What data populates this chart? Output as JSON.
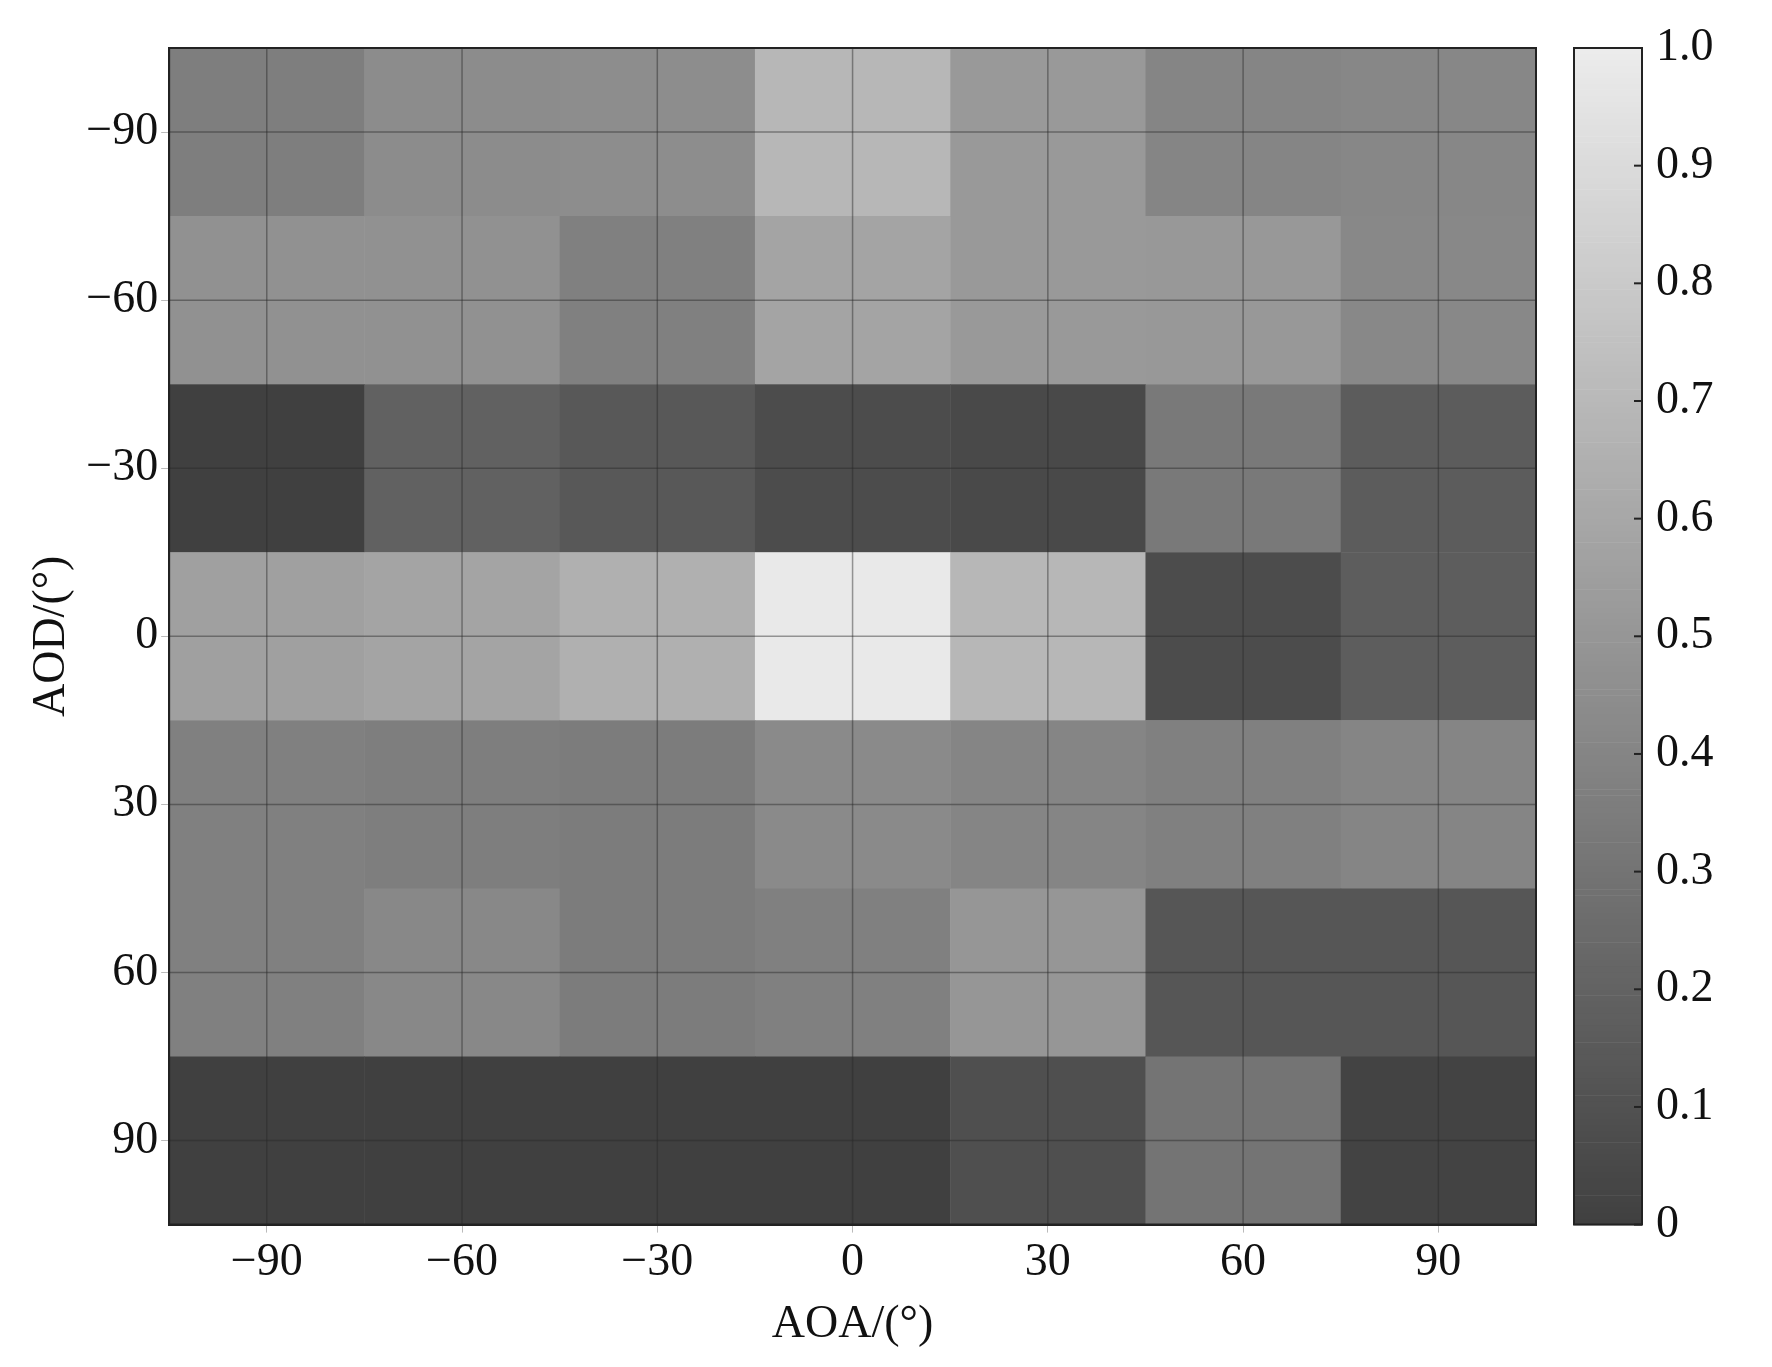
{
  "chart_data": {
    "type": "heatmap",
    "xlabel": "AOA/(°)",
    "ylabel": "AOD/(°)",
    "categories": [
      "−90",
      "−60",
      "−30",
      "0",
      "30",
      "60",
      "90"
    ],
    "y_categories": [
      "−90",
      "−60",
      "−30",
      "0",
      "30",
      "60",
      "90"
    ],
    "cells": [
      [
        0.36,
        0.44,
        0.45,
        0.69,
        0.52,
        0.4,
        0.41
      ],
      [
        0.47,
        0.47,
        0.37,
        0.58,
        0.52,
        0.51,
        0.42
      ],
      [
        0.0,
        0.19,
        0.14,
        0.07,
        0.05,
        0.33,
        0.16
      ],
      [
        0.56,
        0.58,
        0.65,
        0.98,
        0.69,
        0.07,
        0.17
      ],
      [
        0.37,
        0.36,
        0.35,
        0.43,
        0.4,
        0.37,
        0.4
      ],
      [
        0.37,
        0.42,
        0.35,
        0.37,
        0.5,
        0.13,
        0.13
      ],
      [
        0.0,
        0.0,
        0.0,
        0.0,
        0.09,
        0.3,
        0.02
      ]
    ],
    "clim": [
      0,
      1
    ],
    "cticks": [
      0,
      0.1,
      0.2,
      0.3,
      0.4,
      0.5,
      0.6,
      0.7,
      0.8,
      0.9,
      {
        "value": 1,
        "label": "1.0"
      }
    ],
    "grid": true
  }
}
